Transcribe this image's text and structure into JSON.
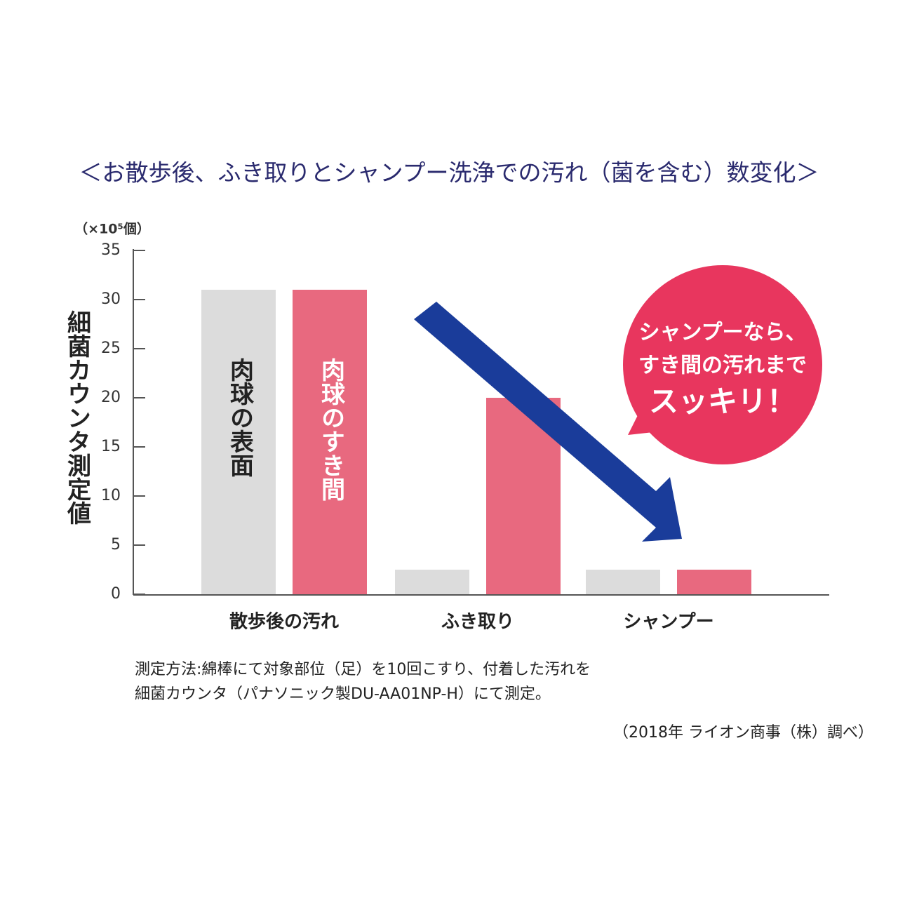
{
  "chart_data": {
    "type": "bar",
    "title": "＜お散歩後、ふき取りとシャンプー洗浄での汚れ（菌を含む）数変化＞",
    "y_unit": "（×10⁵個）",
    "y_label": "細菌カウンタ測定値",
    "categories": [
      "散歩後の汚れ",
      "ふき取り",
      "シャンプー"
    ],
    "series": [
      {
        "name": "肉球の表面",
        "color": "#dcdcdc",
        "values": [
          31,
          2.5,
          2.5
        ]
      },
      {
        "name": "肉球のすき間",
        "color": "#e8697f",
        "values": [
          31,
          20,
          2.5
        ]
      }
    ],
    "ylim": [
      0,
      35
    ],
    "yticks": [
      0,
      5,
      10,
      15,
      20,
      25,
      30,
      35
    ],
    "callout": [
      "シャンプーなら、",
      "すき間の汚れまで",
      "スッキリ！"
    ],
    "notes": [
      "測定方法:綿棒にて対象部位（足）を10回こすり、付着した汚れを",
      "細菌カウンタ（パナソニック製DU-AA01NP-H）にて測定。"
    ],
    "source": "（2018年 ライオン商事（株）調べ）"
  }
}
